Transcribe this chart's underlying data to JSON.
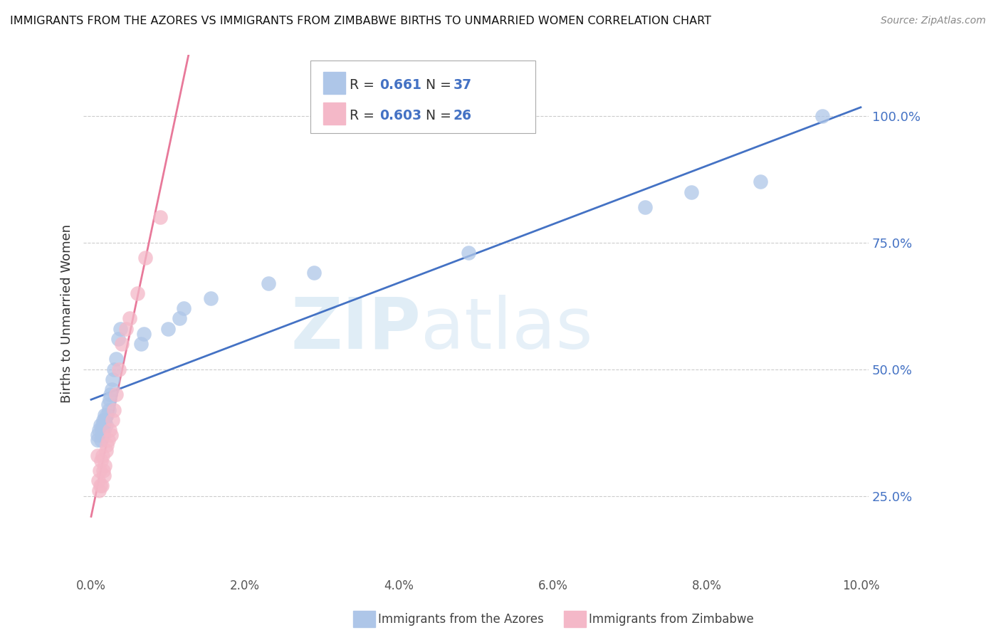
{
  "title": "IMMIGRANTS FROM THE AZORES VS IMMIGRANTS FROM ZIMBABWE BIRTHS TO UNMARRIED WOMEN CORRELATION CHART",
  "source": "Source: ZipAtlas.com",
  "ylabel": "Births to Unmarried Women",
  "xlim": [
    0.0,
    0.1
  ],
  "ylim": [
    0.1,
    1.1
  ],
  "yticks": [
    0.25,
    0.5,
    0.75,
    1.0
  ],
  "ytick_labels": [
    "25.0%",
    "50.0%",
    "75.0%",
    "100.0%"
  ],
  "xtick_labels": [
    "0.0%",
    "2.0%",
    "4.0%",
    "6.0%",
    "8.0%",
    "10.0%"
  ],
  "xticks": [
    0.0,
    0.02,
    0.04,
    0.06,
    0.08,
    0.1
  ],
  "legend_azores_R": "0.661",
  "legend_azores_N": "37",
  "legend_zimbabwe_R": "0.603",
  "legend_zimbabwe_N": "26",
  "azores_color": "#aec6e8",
  "zimbabwe_color": "#f4b8c8",
  "azores_line_color": "#4472c4",
  "zimbabwe_line_color": "#e8799a",
  "watermark_zip": "ZIP",
  "watermark_atlas": "atlas",
  "azores_x": [
    0.0008,
    0.0008,
    0.001,
    0.0012,
    0.0013,
    0.0014,
    0.0015,
    0.0016,
    0.0016,
    0.0017,
    0.0018,
    0.0018,
    0.0019,
    0.002,
    0.0022,
    0.0023,
    0.0024,
    0.0025,
    0.0027,
    0.0028,
    0.003,
    0.0032,
    0.0035,
    0.0038,
    0.0065,
    0.0068,
    0.01,
    0.0115,
    0.012,
    0.0155,
    0.023,
    0.029,
    0.049,
    0.072,
    0.078,
    0.087,
    0.095
  ],
  "azores_y": [
    0.36,
    0.37,
    0.38,
    0.39,
    0.36,
    0.38,
    0.39,
    0.37,
    0.4,
    0.38,
    0.41,
    0.4,
    0.39,
    0.41,
    0.43,
    0.42,
    0.44,
    0.45,
    0.46,
    0.48,
    0.5,
    0.52,
    0.56,
    0.58,
    0.55,
    0.57,
    0.58,
    0.6,
    0.62,
    0.64,
    0.67,
    0.69,
    0.73,
    0.82,
    0.85,
    0.87,
    1.0
  ],
  "zimbabwe_x": [
    0.0008,
    0.0009,
    0.001,
    0.0011,
    0.0012,
    0.0013,
    0.0014,
    0.0015,
    0.0016,
    0.0017,
    0.0018,
    0.0019,
    0.002,
    0.0022,
    0.0024,
    0.0026,
    0.0028,
    0.003,
    0.0032,
    0.0036,
    0.004,
    0.0045,
    0.005,
    0.006,
    0.007,
    0.009
  ],
  "zimbabwe_y": [
    0.33,
    0.28,
    0.26,
    0.3,
    0.27,
    0.32,
    0.27,
    0.33,
    0.3,
    0.29,
    0.31,
    0.34,
    0.35,
    0.36,
    0.38,
    0.37,
    0.4,
    0.42,
    0.45,
    0.5,
    0.55,
    0.58,
    0.6,
    0.65,
    0.72,
    0.8
  ]
}
